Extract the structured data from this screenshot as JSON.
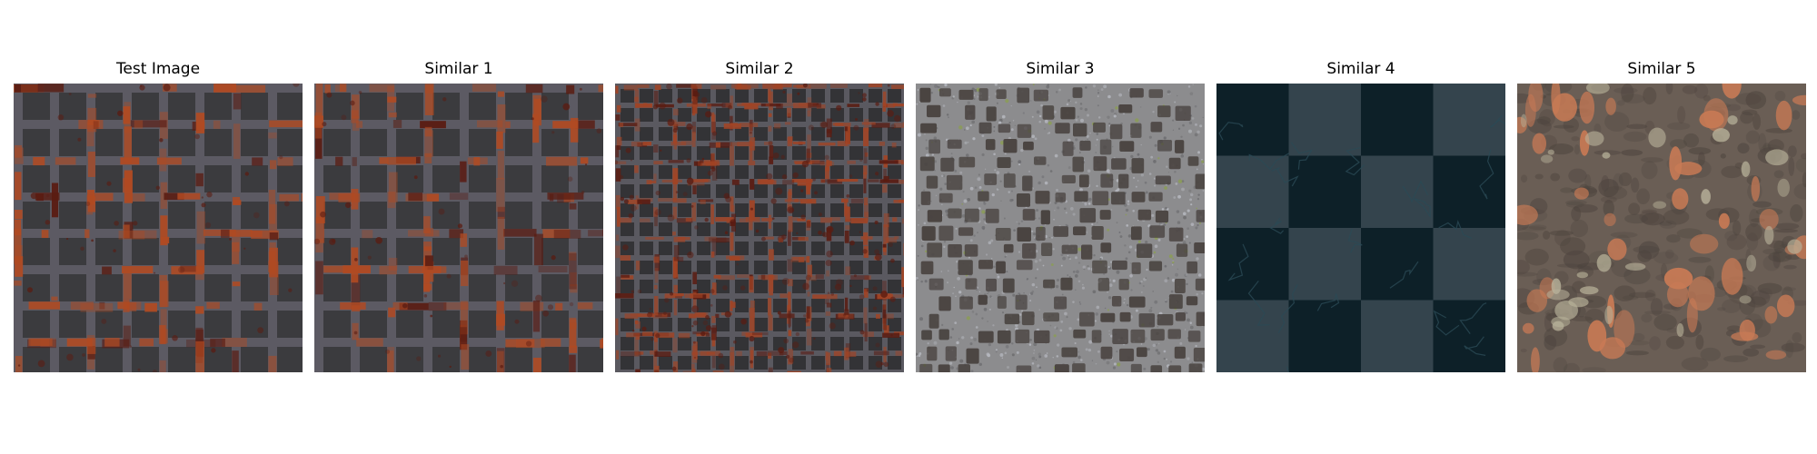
{
  "panels": [
    {
      "title": "Test Image",
      "texture": "rusty-grate-texture",
      "colors": {
        "base": "#3b3b3e",
        "bar": "#5c5a63",
        "rust": "#b04a22",
        "dark_rust": "#5a1c12"
      }
    },
    {
      "title": "Similar 1",
      "texture": "rusty-grate-texture",
      "colors": {
        "base": "#3b3b3e",
        "bar": "#5c5a63",
        "rust": "#b04a22",
        "dark_rust": "#5a1c12"
      }
    },
    {
      "title": "Similar 2",
      "texture": "fine-rusty-grate-texture",
      "colors": {
        "base": "#333336",
        "bar": "#5a5960",
        "rust": "#a24425",
        "dark_rust": "#5a1c12"
      }
    },
    {
      "title": "Similar 3",
      "texture": "cobblestone-gravel-texture",
      "colors": {
        "base": "#8c8c8e",
        "stone": "#4a4441",
        "speck": "#b6b8bf",
        "moss": "#8aa04a"
      }
    },
    {
      "title": "Similar 4",
      "texture": "dark-checker-tile-texture",
      "colors": {
        "dark": "#0d2028",
        "light": "#34444d",
        "crack": "#2a4a55"
      }
    },
    {
      "title": "Similar 5",
      "texture": "rusted-metal-surface-texture",
      "colors": {
        "base": "#6a5e55",
        "rust": "#c87a55",
        "pale": "#b8b29a",
        "dark": "#4d443e"
      }
    }
  ]
}
